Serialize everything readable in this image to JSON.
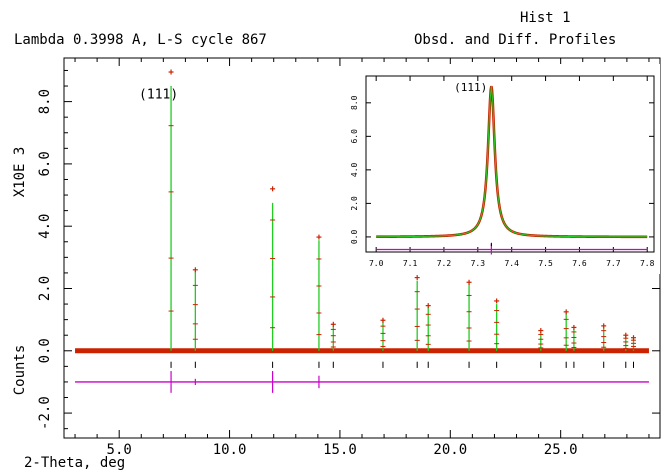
{
  "header": {
    "hist_label": "Hist  1",
    "left_title": "Lambda 0.3998 A, L-S cycle  867",
    "right_title": "Obsd. and Diff. Profiles"
  },
  "axes": {
    "y_scale_label": "X10E  3",
    "y_counts_label": "Counts",
    "x_label": "2-Theta, deg"
  },
  "colors": {
    "observed": "#cc2200",
    "calculated": "#22cc22",
    "difference": "#cc00cc",
    "reflection_ticks": "#000000",
    "frame": "#000000"
  },
  "chart_data": [
    {
      "type": "line",
      "title": "Obsd. and Diff. Profiles",
      "xlabel": "2-Theta, deg",
      "ylabel": "Counts",
      "y_multiplier_label": "X10E  3",
      "xlim": [
        2.5,
        29.5
      ],
      "ylim": [
        -2.8,
        9.4
      ],
      "x_ticks": [
        5.0,
        10.0,
        15.0,
        20.0,
        25.0
      ],
      "x_tick_labels": [
        "5.0",
        "10.0",
        "15.0",
        "20.0",
        "25.0"
      ],
      "y_ticks": [
        -2.0,
        0.0,
        2.0,
        4.0,
        6.0,
        8.0
      ],
      "y_tick_labels": [
        "-2.0",
        "0.0",
        "2.0",
        "4.0",
        "6.0",
        "8.0"
      ],
      "annotations": [
        {
          "text": "(111)",
          "x": 5.9,
          "y": 8.1
        }
      ],
      "background_level": 0.0,
      "difference_offset": -1.0,
      "peaks": [
        {
          "x": 7.35,
          "obs": 8.95,
          "calc": 8.5
        },
        {
          "x": 8.45,
          "obs": 2.6,
          "calc": 2.55
        },
        {
          "x": 11.95,
          "obs": 5.2,
          "calc": 4.75
        },
        {
          "x": 14.05,
          "obs": 3.65,
          "calc": 3.55
        },
        {
          "x": 14.7,
          "obs": 0.85,
          "calc": 0.8
        },
        {
          "x": 16.95,
          "obs": 0.98,
          "calc": 0.95
        },
        {
          "x": 18.5,
          "obs": 2.35,
          "calc": 2.25
        },
        {
          "x": 19.0,
          "obs": 1.45,
          "calc": 1.4
        },
        {
          "x": 20.85,
          "obs": 2.2,
          "calc": 2.15
        },
        {
          "x": 22.1,
          "obs": 1.6,
          "calc": 1.5
        },
        {
          "x": 24.1,
          "obs": 0.65,
          "calc": 0.6
        },
        {
          "x": 25.25,
          "obs": 1.25,
          "calc": 1.2
        },
        {
          "x": 25.6,
          "obs": 0.75,
          "calc": 0.7
        },
        {
          "x": 26.95,
          "obs": 0.8,
          "calc": 0.75
        },
        {
          "x": 27.95,
          "obs": 0.5,
          "calc": 0.48
        },
        {
          "x": 28.3,
          "obs": 0.42,
          "calc": 0.4
        }
      ],
      "difference_spikes": [
        {
          "x": 7.35,
          "amp": 0.35
        },
        {
          "x": 11.95,
          "amp": 0.35
        },
        {
          "x": 14.05,
          "amp": 0.2
        },
        {
          "x": 8.45,
          "amp": 0.1
        }
      ]
    },
    {
      "type": "line",
      "title": "",
      "xlim": [
        6.97,
        7.82
      ],
      "ylim": [
        -0.9,
        9.6
      ],
      "x_ticks": [
        7.0,
        7.1,
        7.2,
        7.3,
        7.4,
        7.5,
        7.6,
        7.7,
        7.8
      ],
      "x_tick_labels": [
        "7.0",
        "7.1",
        "7.2",
        "7.3",
        "7.4",
        "7.5",
        "7.6",
        "7.7",
        "7.8"
      ],
      "y_ticks": [
        0.0,
        2.0,
        4.0,
        6.0,
        8.0
      ],
      "y_tick_labels": [
        "0.0",
        "2.0",
        "4.0",
        "6.0",
        "8.0"
      ],
      "annotations": [
        {
          "text": "(111)",
          "x": 7.23,
          "y": 8.7
        }
      ],
      "peak": {
        "x": 7.34,
        "height": 9.0,
        "width": 0.012
      },
      "background_level": 0.0,
      "difference_offset": -0.75
    }
  ]
}
